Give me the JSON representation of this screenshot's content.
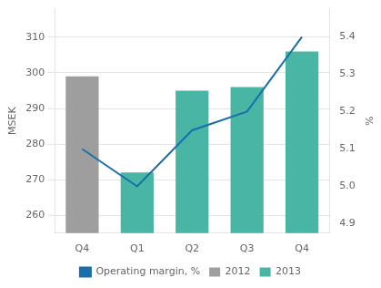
{
  "chart_data": {
    "type": "bar",
    "categories": [
      "Q4",
      "Q1",
      "Q2",
      "Q3",
      "Q4"
    ],
    "series": [
      {
        "name": "2012",
        "type": "bar",
        "color": "#9e9e9e",
        "values": [
          299,
          null,
          null,
          null,
          null
        ]
      },
      {
        "name": "2013",
        "type": "bar",
        "color": "#49b5a5",
        "values": [
          null,
          272,
          295,
          296,
          306
        ]
      },
      {
        "name": "Operating margin, %",
        "type": "line",
        "axis": "y2",
        "color": "#1a6fa8",
        "values": [
          5.1,
          5.0,
          5.15,
          5.2,
          5.4
        ]
      }
    ],
    "ylabel": "MSEK",
    "y2label": "%",
    "ylim": [
      255,
      318
    ],
    "yticks": [
      260,
      270,
      280,
      290,
      300,
      310
    ],
    "y2lim": [
      4.875,
      5.475
    ],
    "y2ticks": [
      {
        "value": 4.9,
        "label": "4.9"
      },
      {
        "value": 5.0,
        "label": "5.0"
      },
      {
        "value": 5.1,
        "label": "5.1"
      },
      {
        "value": 5.2,
        "label": "5.2"
      },
      {
        "value": 5.3,
        "label": "5.3"
      },
      {
        "value": 5.4,
        "label": "5.4"
      }
    ],
    "grid": true,
    "legend": "bottom"
  }
}
